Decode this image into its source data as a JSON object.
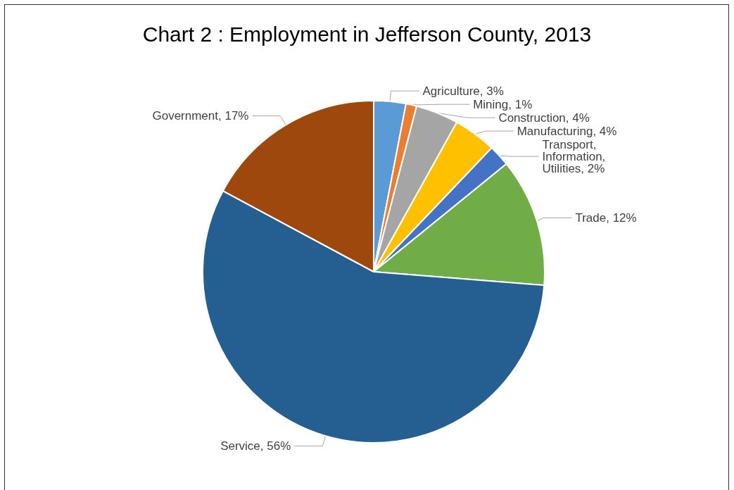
{
  "chart_data": {
    "type": "pie",
    "title": "Chart 2 : Employment in Jefferson County, 2013",
    "categories": [
      "Agriculture",
      "Mining",
      "Construction",
      "Manufacturing",
      "Transport, Information, Utilities",
      "Trade",
      "Service",
      "Government"
    ],
    "values": [
      3,
      1,
      4,
      4,
      2,
      12,
      56,
      17
    ],
    "value_labels": [
      "3%",
      "1%",
      "4%",
      "4%",
      "2%",
      "12%",
      "56%",
      "17%"
    ],
    "colors": [
      "#5b9bd5",
      "#ed7d31",
      "#a5a5a5",
      "#ffc000",
      "#4472c4",
      "#70ad47",
      "#255e91",
      "#9e480e"
    ],
    "legend": false
  }
}
